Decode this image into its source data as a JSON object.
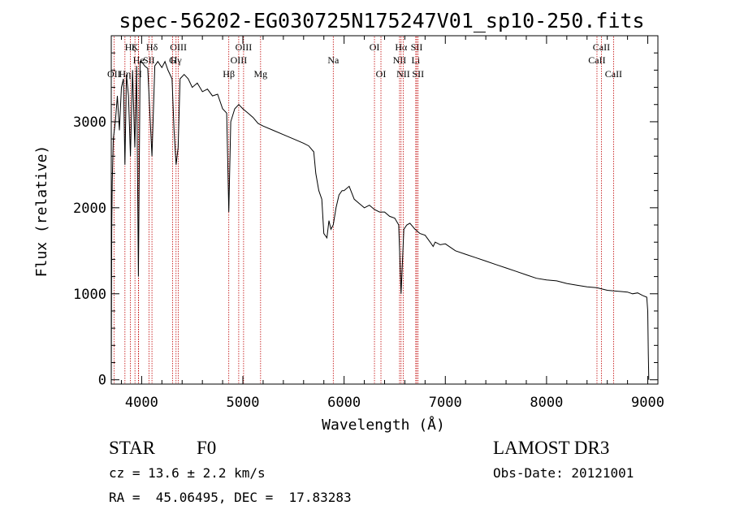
{
  "chart_data": {
    "type": "line",
    "title": "spec-56202-EG030725N175247V01_sp10-250.fits",
    "xlabel": "Wavelength (Å)",
    "ylabel": "Flux (relative)",
    "xlim": [
      3700,
      9100
    ],
    "ylim": [
      -50,
      4000
    ],
    "xticks": [
      4000,
      5000,
      6000,
      7000,
      8000,
      9000
    ],
    "yticks": [
      0,
      1000,
      2000,
      3000
    ],
    "series": [
      {
        "name": "flux",
        "x": [
          3700,
          3705,
          3710,
          3720,
          3740,
          3760,
          3780,
          3800,
          3820,
          3835,
          3850,
          3870,
          3889,
          3910,
          3933,
          3950,
          3968,
          3985,
          4000,
          4030,
          4060,
          4102,
          4130,
          4160,
          4200,
          4230,
          4260,
          4300,
          4320,
          4340,
          4360,
          4380,
          4420,
          4460,
          4500,
          4550,
          4600,
          4650,
          4700,
          4750,
          4800,
          4840,
          4861,
          4880,
          4920,
          4960,
          5000,
          5050,
          5100,
          5150,
          5200,
          5300,
          5400,
          5500,
          5600,
          5650,
          5700,
          5720,
          5750,
          5780,
          5800,
          5830,
          5850,
          5870,
          5893,
          5920,
          5950,
          5980,
          6000,
          6050,
          6100,
          6150,
          6200,
          6250,
          6300,
          6350,
          6400,
          6450,
          6500,
          6540,
          6563,
          6590,
          6620,
          6650,
          6700,
          6750,
          6800,
          6850,
          6880,
          6900,
          6950,
          7000,
          7100,
          7200,
          7300,
          7400,
          7500,
          7600,
          7700,
          7800,
          7900,
          8000,
          8100,
          8200,
          8300,
          8400,
          8500,
          8600,
          8700,
          8800,
          8850,
          8900,
          8950,
          8990,
          9000,
          9005,
          9010
        ],
        "y": [
          0,
          1800,
          2300,
          2800,
          3000,
          3300,
          2900,
          3400,
          3500,
          2500,
          3550,
          3300,
          2600,
          3600,
          2700,
          3650,
          1200,
          3700,
          3700,
          3650,
          3620,
          2600,
          3650,
          3700,
          3630,
          3700,
          3600,
          3500,
          2900,
          2500,
          2700,
          3500,
          3550,
          3500,
          3400,
          3450,
          3350,
          3380,
          3300,
          3320,
          3150,
          3100,
          1950,
          3000,
          3150,
          3200,
          3150,
          3100,
          3050,
          2980,
          2950,
          2900,
          2850,
          2800,
          2750,
          2720,
          2650,
          2400,
          2200,
          2100,
          1700,
          1650,
          1850,
          1750,
          1800,
          2000,
          2150,
          2200,
          2200,
          2250,
          2100,
          2050,
          2000,
          2030,
          1980,
          1950,
          1950,
          1900,
          1880,
          1800,
          1000,
          1750,
          1800,
          1820,
          1750,
          1700,
          1680,
          1600,
          1550,
          1600,
          1570,
          1580,
          1500,
          1460,
          1420,
          1380,
          1340,
          1300,
          1260,
          1220,
          1180,
          1160,
          1150,
          1120,
          1100,
          1080,
          1070,
          1040,
          1030,
          1020,
          1000,
          1010,
          980,
          960,
          800,
          300,
          0
        ]
      }
    ],
    "line_markers": [
      {
        "name": "OII",
        "wavelength": 3727,
        "row": 3
      },
      {
        "name": "Hζ",
        "wavelength": 3889,
        "row": 1
      },
      {
        "name": "Hη",
        "wavelength": 3835,
        "row": 3
      },
      {
        "name": "He",
        "wavelength": 3970,
        "row": 2
      },
      {
        "name": "K",
        "wavelength": 3934,
        "row": 1
      },
      {
        "name": "H",
        "wavelength": 3968,
        "row": 3
      },
      {
        "name": "Hδ",
        "wavelength": 4102,
        "row": 1
      },
      {
        "name": "SII",
        "wavelength": 4072,
        "row": 2
      },
      {
        "name": "OIII",
        "wavelength": 4363,
        "row": 1
      },
      {
        "name": "Hγ",
        "wavelength": 4340,
        "row": 2
      },
      {
        "name": "G",
        "wavelength": 4305,
        "row": 2
      },
      {
        "name": "Hβ",
        "wavelength": 4861,
        "row": 3
      },
      {
        "name": "OIII",
        "wavelength": 4959,
        "row": 2
      },
      {
        "name": "OIII",
        "wavelength": 5007,
        "row": 1
      },
      {
        "name": "Mg",
        "wavelength": 5175,
        "row": 3
      },
      {
        "name": "Na",
        "wavelength": 5893,
        "row": 2
      },
      {
        "name": "OI",
        "wavelength": 6300,
        "row": 1
      },
      {
        "name": "OI",
        "wavelength": 6364,
        "row": 3
      },
      {
        "name": "NII",
        "wavelength": 6548,
        "row": 2
      },
      {
        "name": "Hα",
        "wavelength": 6563,
        "row": 1
      },
      {
        "name": "NII",
        "wavelength": 6584,
        "row": 3
      },
      {
        "name": "Li",
        "wavelength": 6708,
        "row": 2
      },
      {
        "name": "SII",
        "wavelength": 6717,
        "row": 1
      },
      {
        "name": "SII",
        "wavelength": 6731,
        "row": 3
      },
      {
        "name": "CaII",
        "wavelength": 8498,
        "row": 2
      },
      {
        "name": "CaII",
        "wavelength": 8542,
        "row": 1
      },
      {
        "name": "CaII",
        "wavelength": 8662,
        "row": 3
      }
    ],
    "colors": {
      "line": "#000000",
      "marker": "#c00000",
      "axis": "#000000"
    }
  },
  "info": {
    "class_label": "STAR",
    "subclass": "F0",
    "survey": "LAMOST DR3",
    "redshift": "cz = 13.6 ± 2.2 km/s",
    "obs_date": "Obs-Date: 20121001",
    "coords": "RA =  45.06495, DEC =  17.83283"
  }
}
